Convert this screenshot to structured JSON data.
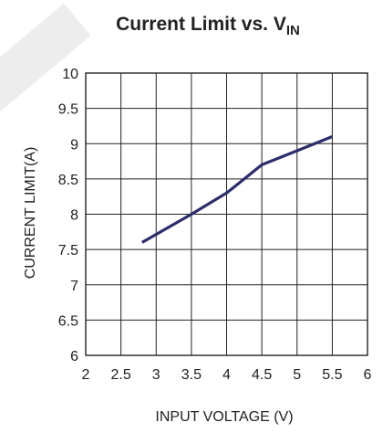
{
  "chart_data": {
    "type": "line",
    "title": "Current Limit vs. V",
    "title_subscript": "IN",
    "xlabel": "INPUT VOLTAGE (V)",
    "ylabel": "CURRENT LIMIT(A)",
    "xlim": [
      2,
      6
    ],
    "ylim": [
      6,
      10
    ],
    "xticks": [
      2,
      2.5,
      3,
      3.5,
      4,
      4.5,
      5,
      5.5,
      6
    ],
    "yticks": [
      6,
      6.5,
      7,
      7.5,
      8,
      8.5,
      9,
      9.5,
      10
    ],
    "xtick_labels": [
      "2",
      "2.5",
      "3",
      "3.5",
      "4",
      "4.5",
      "5",
      "5.5",
      "6"
    ],
    "ytick_labels": [
      "6",
      "6.5",
      "7",
      "7.5",
      "8",
      "8.5",
      "9",
      "9.5",
      "10"
    ],
    "grid": true,
    "series": [
      {
        "color": "#2b2e6b",
        "x": [
          2.8,
          3.5,
          4.0,
          4.5,
          5.0,
          5.5
        ],
        "y": [
          7.6,
          8.0,
          8.3,
          8.7,
          8.9,
          9.1
        ]
      }
    ]
  }
}
